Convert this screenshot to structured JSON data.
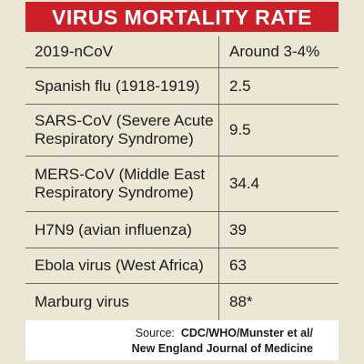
{
  "title": "VIRUS MORTALITY RATE",
  "rows": [
    {
      "virus": "2019-nCoV",
      "rate": "Around 3-4%"
    },
    {
      "virus": "Spanish flu (1918-1919)",
      "rate": "2.5"
    },
    {
      "virus": "SARS-CoV (Severe Acute Respiratory Syndrome)",
      "rate": "9.5"
    },
    {
      "virus": "MERS-CoV (Middle East Respiratory Syndrome)",
      "rate": "34.4"
    },
    {
      "virus": "H7N9 (avian influenza)",
      "rate": "39"
    },
    {
      "virus": "Ebola virus (West Africa)",
      "rate": "63"
    },
    {
      "virus": "Marburg virus",
      "rate": "88*"
    }
  ],
  "source": {
    "label": "Source:",
    "line1": "CDC/WHO/Munster et al/",
    "line2": "New England Journal of Medicine"
  },
  "colors": {
    "title_background": "#cc1f27",
    "title_text": "#ffffff",
    "table_background": "#ece6d4",
    "source_background": "#ffffff"
  }
}
